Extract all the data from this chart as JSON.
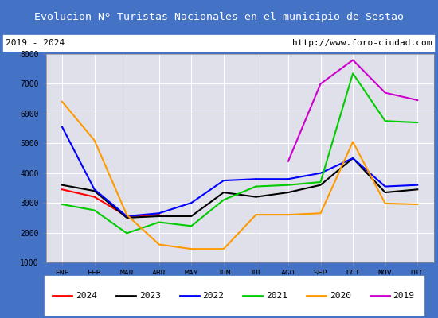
{
  "title": "Evolucion Nº Turistas Nacionales en el municipio de Sestao",
  "subtitle_left": "2019 - 2024",
  "subtitle_right": "http://www.foro-ciudad.com",
  "months": [
    "ENE",
    "FEB",
    "MAR",
    "ABR",
    "MAY",
    "JUN",
    "JUL",
    "AGO",
    "SEP",
    "OCT",
    "NOV",
    "DIC"
  ],
  "series": {
    "2024": [
      3450,
      3200,
      2550,
      2600,
      null,
      null,
      null,
      null,
      null,
      null,
      null,
      null
    ],
    "2023": [
      3600,
      3400,
      2500,
      2550,
      2550,
      3350,
      3200,
      3350,
      3600,
      4500,
      3350,
      3450
    ],
    "2022": [
      5550,
      3450,
      2550,
      2650,
      3000,
      3750,
      3800,
      3800,
      4000,
      4500,
      3550,
      3600
    ],
    "2021": [
      2950,
      2750,
      1980,
      2350,
      2220,
      3100,
      3550,
      3600,
      3700,
      7350,
      5750,
      5700
    ],
    "2020": [
      6400,
      5100,
      2600,
      1600,
      1450,
      1450,
      2600,
      2600,
      2650,
      5050,
      2980,
      2950
    ],
    "2019": [
      null,
      null,
      null,
      null,
      null,
      null,
      null,
      4400,
      7000,
      7800,
      6700,
      6450
    ]
  },
  "colors": {
    "2024": "#ff0000",
    "2023": "#000000",
    "2022": "#0000ff",
    "2021": "#00cc00",
    "2020": "#ff9900",
    "2019": "#cc00cc"
  },
  "ylim": [
    1000,
    8000
  ],
  "yticks": [
    1000,
    2000,
    3000,
    4000,
    5000,
    6000,
    7000,
    8000
  ],
  "title_bg": "#4472c4",
  "title_color": "#ffffff",
  "subtitle_bg": "#ffffff",
  "plot_bg": "#e0e0ea",
  "grid_color": "#ffffff",
  "border_color": "#4472c4",
  "fig_bg": "#4472c4"
}
